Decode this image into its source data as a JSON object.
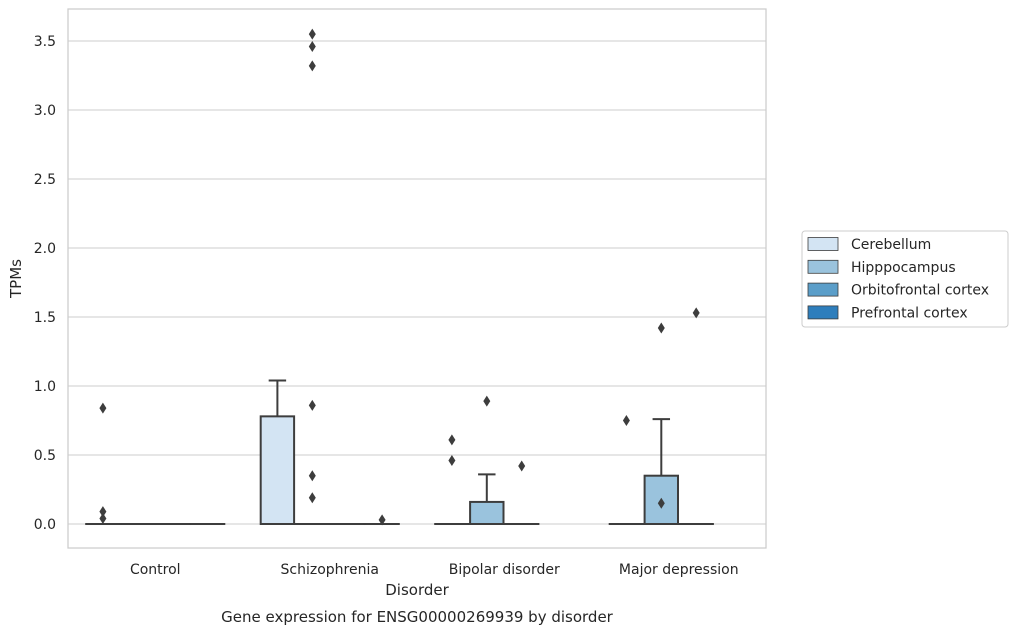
{
  "chart_data": {
    "type": "box",
    "title": "",
    "caption": "Gene expression for ENSG00000269939 by disorder",
    "xlabel": "Disorder",
    "ylabel": "TPMs",
    "ylim": [
      -0.17,
      3.73
    ],
    "yticks": [
      0.0,
      0.5,
      1.0,
      1.5,
      2.0,
      2.5,
      3.0,
      3.5
    ],
    "ytick_labels": [
      "0.0",
      "0.5",
      "1.0",
      "1.5",
      "2.0",
      "2.5",
      "3.0",
      "3.5"
    ],
    "grid": "horizontal",
    "legend_position": "right",
    "categories": [
      "Control",
      "Schizophrenia",
      "Bipolar disorder",
      "Major depression"
    ],
    "series": [
      {
        "name": "Cerebellum",
        "color": "#d3e4f3",
        "boxes": [
          {
            "q1": 0,
            "median": 0,
            "q3": 0,
            "whislo": 0,
            "whishi": 0,
            "fliers": [
              0.84,
              0.09,
              0.04
            ]
          },
          {
            "q1": 0,
            "median": 0,
            "q3": 0.78,
            "whislo": 0,
            "whishi": 1.04,
            "fliers": []
          },
          {
            "q1": 0,
            "median": 0,
            "q3": 0,
            "whislo": 0,
            "whishi": 0,
            "fliers": [
              0.61,
              0.46
            ]
          },
          {
            "q1": 0,
            "median": 0,
            "q3": 0,
            "whislo": 0,
            "whishi": 0,
            "fliers": [
              0.75
            ]
          }
        ]
      },
      {
        "name": "Hipppocampus",
        "color": "#9ac3dd",
        "boxes": [
          {
            "q1": 0,
            "median": 0,
            "q3": 0,
            "whislo": 0,
            "whishi": 0,
            "fliers": []
          },
          {
            "q1": 0,
            "median": 0,
            "q3": 0,
            "whislo": 0,
            "whishi": 0,
            "fliers": [
              3.55,
              3.46,
              3.32,
              0.86,
              0.35,
              0.19
            ]
          },
          {
            "q1": 0,
            "median": 0,
            "q3": 0.16,
            "whislo": 0,
            "whishi": 0.36,
            "fliers": [
              0.89
            ]
          },
          {
            "q1": 0,
            "median": 0,
            "q3": 0.35,
            "whislo": 0,
            "whishi": 0.76,
            "fliers": [
              1.42,
              0.15
            ]
          }
        ]
      },
      {
        "name": "Orbitofrontal cortex",
        "color": "#5b9ec9",
        "boxes": [
          {
            "q1": 0,
            "median": 0,
            "q3": 0,
            "whislo": 0,
            "whishi": 0,
            "fliers": []
          },
          {
            "q1": 0,
            "median": 0,
            "q3": 0,
            "whislo": 0,
            "whishi": 0,
            "fliers": []
          },
          {
            "q1": 0,
            "median": 0,
            "q3": 0,
            "whislo": 0,
            "whishi": 0,
            "fliers": [
              0.42
            ]
          },
          {
            "q1": 0,
            "median": 0,
            "q3": 0,
            "whislo": 0,
            "whishi": 0,
            "fliers": [
              1.53
            ]
          }
        ]
      },
      {
        "name": "Prefrontal cortex",
        "color": "#2e7ebc",
        "boxes": [
          {
            "q1": 0,
            "median": 0,
            "q3": 0,
            "whislo": 0,
            "whishi": 0,
            "fliers": []
          },
          {
            "q1": 0,
            "median": 0,
            "q3": 0,
            "whislo": 0,
            "whishi": 0,
            "fliers": [
              0.03
            ]
          },
          null,
          null
        ]
      }
    ]
  }
}
